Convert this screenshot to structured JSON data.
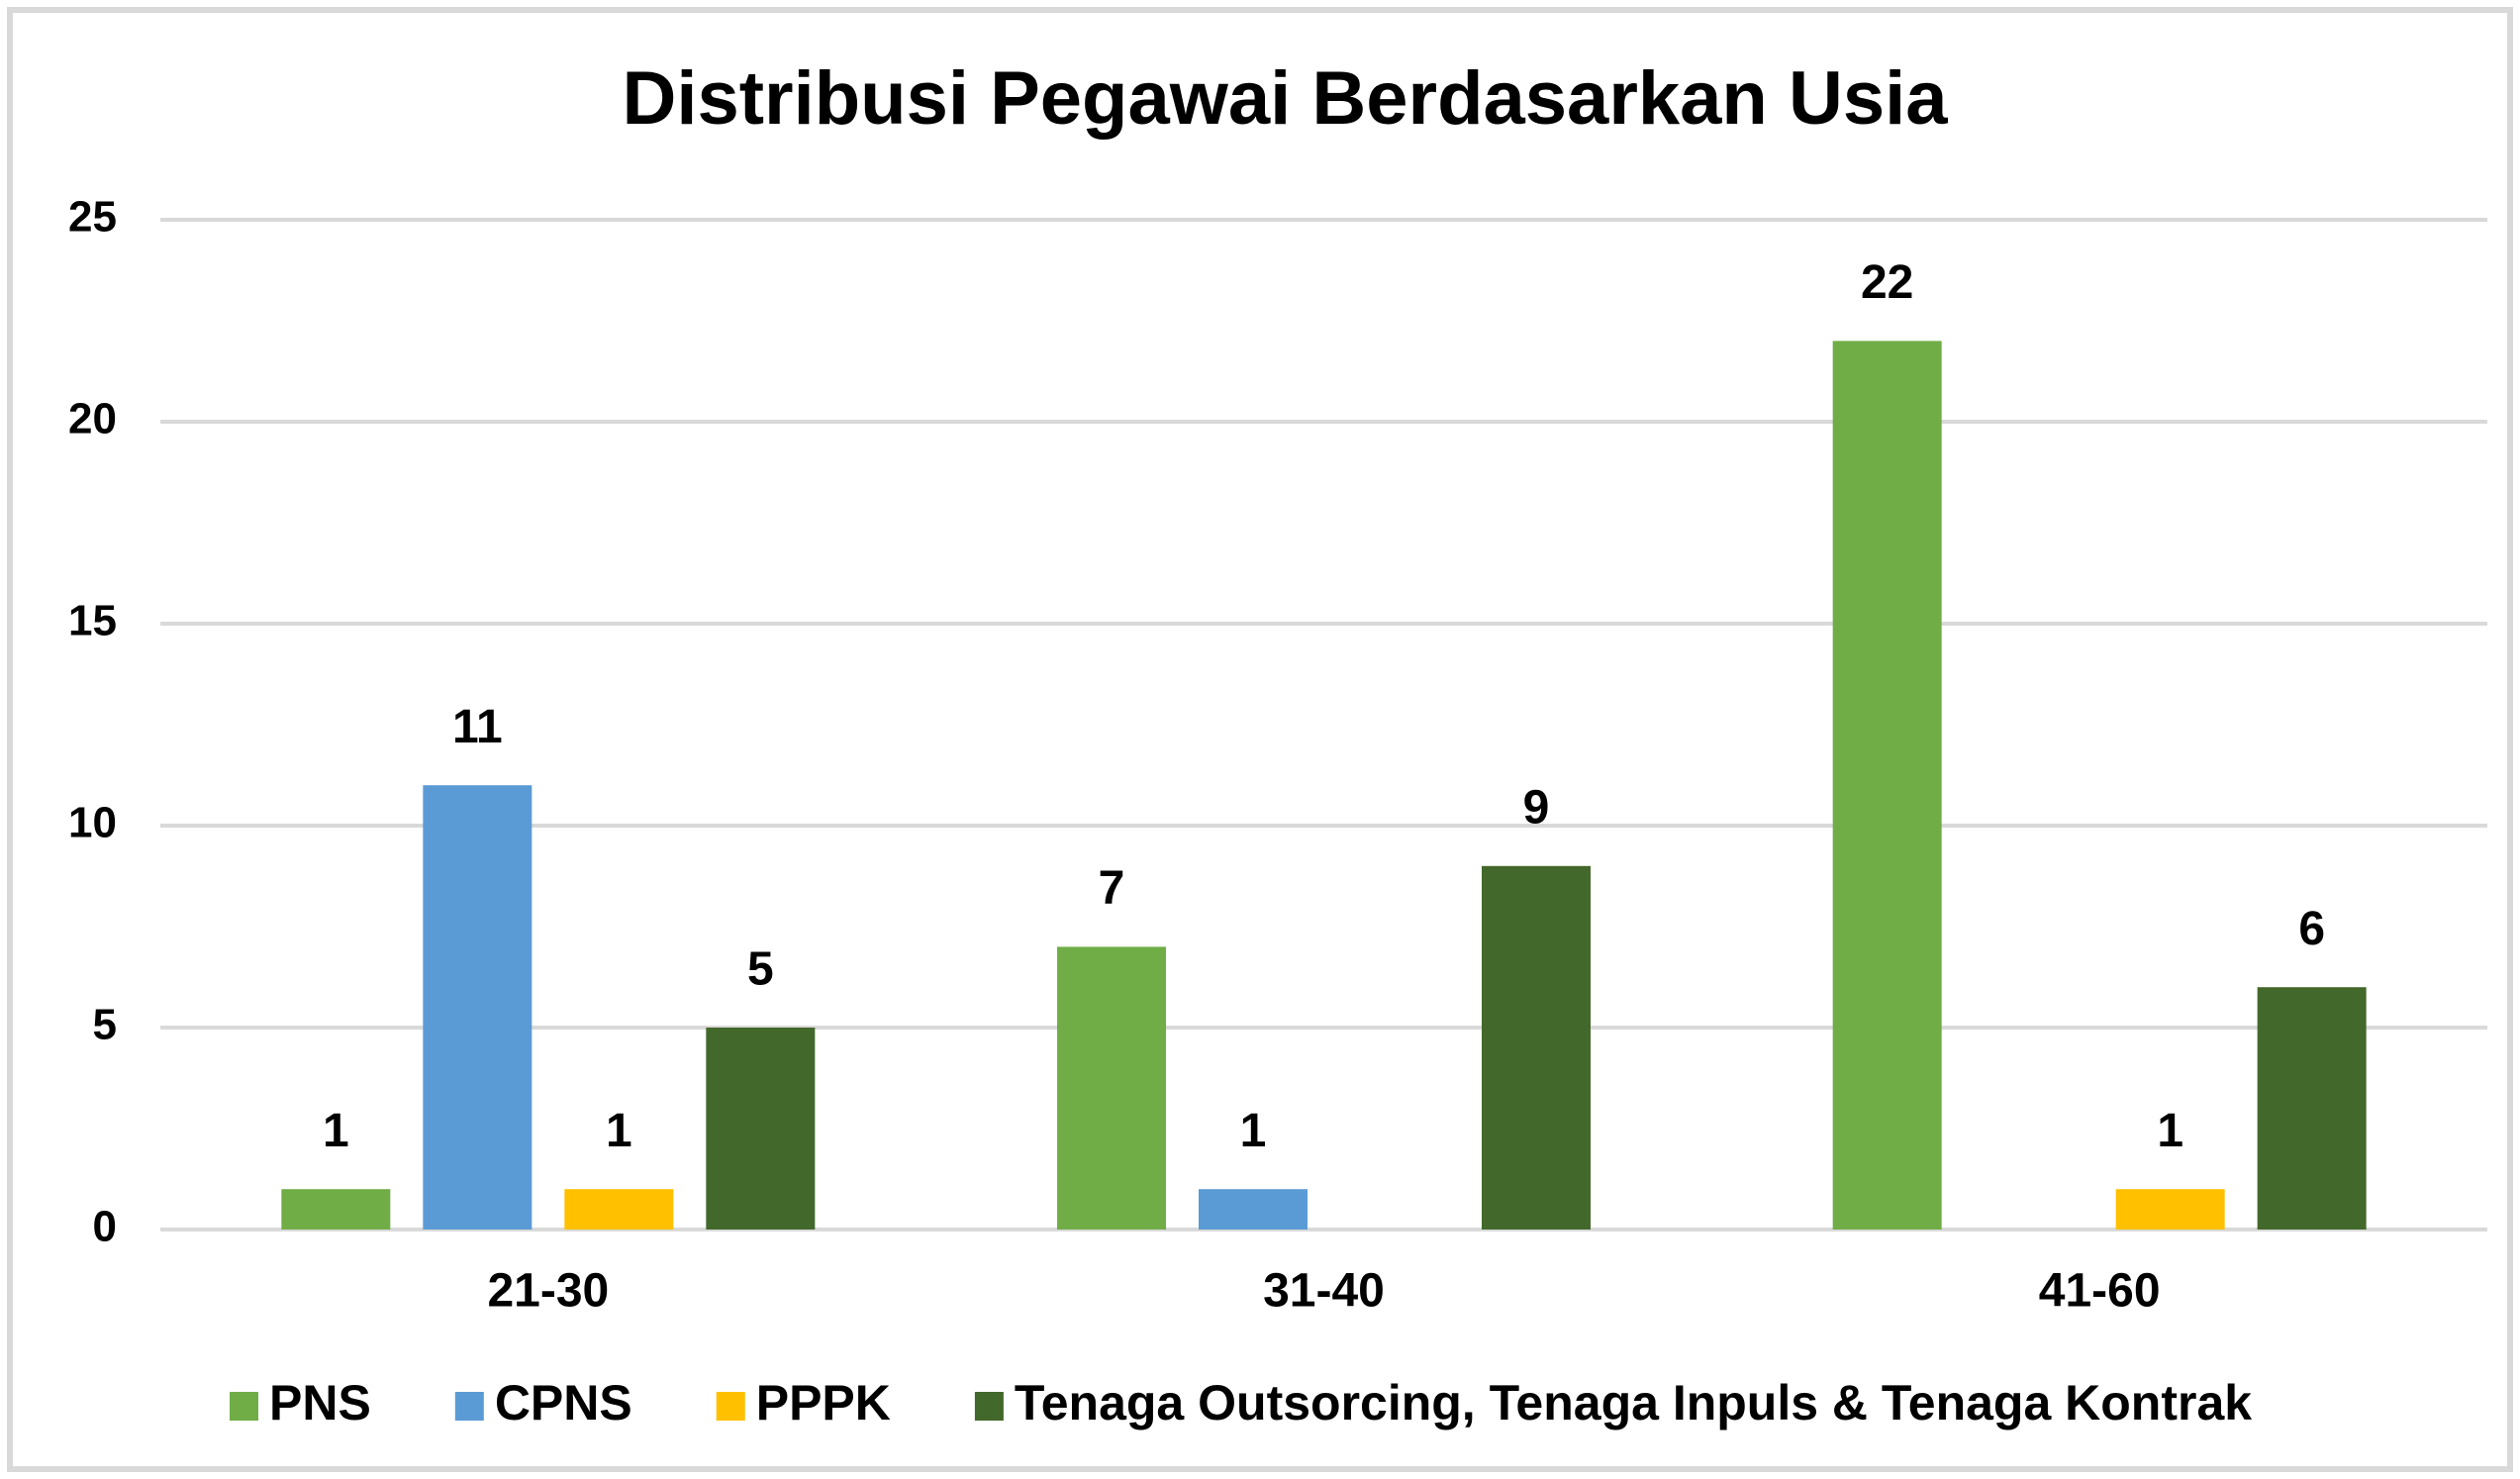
{
  "chart_data": {
    "type": "bar",
    "title": "Distribusi Pegawai Berdasarkan Usia",
    "categories": [
      "21-30",
      "31-40",
      "41-60"
    ],
    "series": [
      {
        "name": "PNS",
        "color": "#70ad47",
        "values": [
          1,
          7,
          22
        ]
      },
      {
        "name": "CPNS",
        "color": "#5b9bd5",
        "values": [
          11,
          1,
          null
        ]
      },
      {
        "name": "PPPK",
        "color": "#ffc000",
        "values": [
          1,
          null,
          1
        ]
      },
      {
        "name": "Tenaga Outsorcing, Tenaga Inpuls & Tenaga Kontrak",
        "color": "#43682b",
        "values": [
          5,
          9,
          6
        ]
      }
    ],
    "ylim": [
      0,
      25
    ],
    "yticks": [
      0,
      5,
      10,
      15,
      20,
      25
    ],
    "grid": true,
    "legend": "bottom"
  }
}
